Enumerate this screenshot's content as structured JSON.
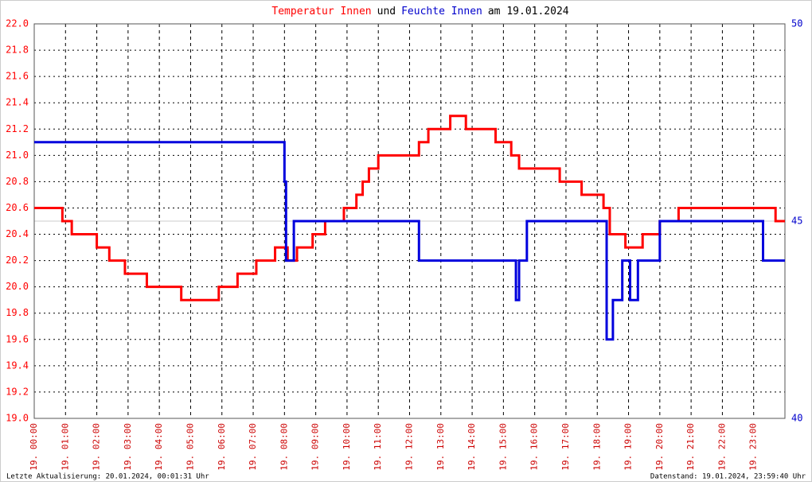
{
  "chart_data": {
    "type": "line",
    "title": [
      {
        "text": "Temperatur Innen",
        "color": "#ff0000"
      },
      {
        "text": "und",
        "color": "#000000"
      },
      {
        "text": "Feuchte Innen",
        "color": "#0000cc"
      },
      {
        "text": "am 19.01.2024",
        "color": "#000000"
      }
    ],
    "footer_left": "Letzte Aktualisierung: 20.01.2024, 00:01:31 Uhr",
    "footer_right": "Datenstand: 19.01.2024, 23:59:40 Uhr",
    "grid": true,
    "xlim": [
      0,
      24
    ],
    "xticks": [
      {
        "value": 0,
        "label": "19. 00:00"
      },
      {
        "value": 1,
        "label": "19. 01:00"
      },
      {
        "value": 2,
        "label": "19. 02:00"
      },
      {
        "value": 3,
        "label": "19. 03:00"
      },
      {
        "value": 4,
        "label": "19. 04:00"
      },
      {
        "value": 5,
        "label": "19. 05:00"
      },
      {
        "value": 6,
        "label": "19. 06:00"
      },
      {
        "value": 7,
        "label": "19. 07:00"
      },
      {
        "value": 8,
        "label": "19. 08:00"
      },
      {
        "value": 9,
        "label": "19. 09:00"
      },
      {
        "value": 10,
        "label": "19. 10:00"
      },
      {
        "value": 11,
        "label": "19. 11:00"
      },
      {
        "value": 12,
        "label": "19. 12:00"
      },
      {
        "value": 13,
        "label": "19. 13:00"
      },
      {
        "value": 14,
        "label": "19. 14:00"
      },
      {
        "value": 15,
        "label": "19. 15:00"
      },
      {
        "value": 16,
        "label": "19. 16:00"
      },
      {
        "value": 17,
        "label": "19. 17:00"
      },
      {
        "value": 18,
        "label": "19. 18:00"
      },
      {
        "value": 19,
        "label": "19. 19:00"
      },
      {
        "value": 20,
        "label": "19. 20:00"
      },
      {
        "value": 21,
        "label": "19. 21:00"
      },
      {
        "value": 22,
        "label": "19. 22:00"
      },
      {
        "value": 23,
        "label": "19. 23:00"
      }
    ],
    "ylim": [
      19.0,
      22.0
    ],
    "yticks": [
      {
        "value": 19.0,
        "label": "19.0"
      },
      {
        "value": 19.2,
        "label": "19.2"
      },
      {
        "value": 19.4,
        "label": "19.4"
      },
      {
        "value": 19.6,
        "label": "19.6"
      },
      {
        "value": 19.8,
        "label": "19.8"
      },
      {
        "value": 20.0,
        "label": "20.0"
      },
      {
        "value": 20.2,
        "label": "20.2"
      },
      {
        "value": 20.4,
        "label": "20.4"
      },
      {
        "value": 20.6,
        "label": "20.6"
      },
      {
        "value": 20.8,
        "label": "20.8"
      },
      {
        "value": 21.0,
        "label": "21.0"
      },
      {
        "value": 21.2,
        "label": "21.2"
      },
      {
        "value": 21.4,
        "label": "21.4"
      },
      {
        "value": 21.6,
        "label": "21.6"
      },
      {
        "value": 21.8,
        "label": "21.8"
      },
      {
        "value": 22.0,
        "label": "22.0"
      }
    ],
    "y2lim": [
      40,
      50
    ],
    "y2ticks": [
      40,
      45,
      50
    ],
    "series": [
      {
        "name": "Temperatur Innen",
        "color": "#ff0000",
        "axis": "y",
        "x": [
          0,
          0.9,
          0.9,
          1.2,
          1.2,
          2.0,
          2.0,
          2.4,
          2.4,
          2.9,
          2.9,
          3.6,
          3.6,
          4.7,
          4.7,
          5.9,
          5.9,
          6.5,
          6.5,
          7.1,
          7.1,
          7.7,
          7.7,
          8.1,
          8.1,
          8.4,
          8.4,
          8.9,
          8.9,
          9.3,
          9.3,
          9.9,
          9.9,
          10.3,
          10.3,
          10.5,
          10.5,
          10.7,
          10.7,
          11.0,
          11.0,
          12.3,
          12.3,
          12.6,
          12.6,
          13.3,
          13.3,
          13.8,
          13.8,
          14.75,
          14.75,
          15.25,
          15.25,
          15.5,
          15.5,
          16.8,
          16.8,
          17.5,
          17.5,
          18.2,
          18.2,
          18.4,
          18.4,
          18.9,
          18.9,
          19.45,
          19.45,
          20.0,
          20.0,
          20.6,
          20.6,
          23.7,
          23.7,
          24
        ],
        "values": [
          20.6,
          20.6,
          20.5,
          20.5,
          20.4,
          20.4,
          20.3,
          20.3,
          20.2,
          20.2,
          20.1,
          20.1,
          20.0,
          20.0,
          19.9,
          19.9,
          20.0,
          20.0,
          20.1,
          20.1,
          20.2,
          20.2,
          20.3,
          20.3,
          20.2,
          20.2,
          20.3,
          20.3,
          20.4,
          20.4,
          20.5,
          20.5,
          20.6,
          20.6,
          20.7,
          20.7,
          20.8,
          20.8,
          20.9,
          20.9,
          21.0,
          21.0,
          21.1,
          21.1,
          21.2,
          21.2,
          21.3,
          21.3,
          21.2,
          21.2,
          21.1,
          21.1,
          21.0,
          21.0,
          20.9,
          20.9,
          20.8,
          20.8,
          20.7,
          20.7,
          20.6,
          20.6,
          20.4,
          20.4,
          20.3,
          20.3,
          20.4,
          20.4,
          20.5,
          20.5,
          20.6,
          20.6,
          20.5,
          20.5
        ]
      },
      {
        "name": "Feuchte Innen",
        "color": "#0000dd",
        "axis": "y2",
        "x": [
          0,
          8.0,
          8.0,
          8.05,
          8.05,
          8.3,
          8.3,
          12.3,
          12.3,
          15.4,
          15.4,
          15.5,
          15.5,
          15.75,
          15.75,
          18.3,
          18.3,
          18.5,
          18.5,
          18.8,
          18.8,
          19.05,
          19.05,
          19.3,
          19.3,
          20.0,
          20.0,
          23.3,
          23.3,
          24
        ],
        "values": [
          47,
          47,
          46,
          46,
          44,
          44,
          45,
          45,
          44,
          44,
          43,
          43,
          44,
          44,
          45,
          45,
          42,
          42,
          43,
          43,
          44,
          44,
          43,
          43,
          44,
          44,
          45,
          45,
          44,
          44
        ]
      }
    ]
  }
}
